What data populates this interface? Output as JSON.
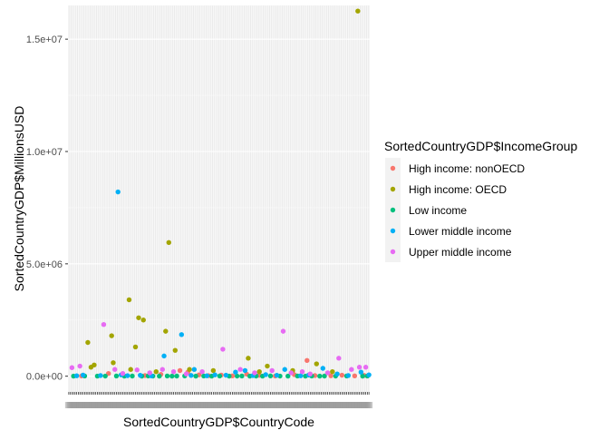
{
  "chart_data": {
    "type": "scatter",
    "xlabel": "SortedCountryGDP$CountryCode",
    "ylabel": "SortedCountryGDP$MillionsUSD",
    "ylim": [
      -700000,
      16500000
    ],
    "y_ticks": [
      0,
      5000000,
      10000000,
      15000000
    ],
    "y_tick_labels": [
      "0.0e+00",
      "5.0e+06",
      "1.0e+07",
      "1.5e+07"
    ],
    "x_category_count": 190,
    "x_tick_labels_legible": false,
    "grid": true,
    "background": "#ebebeb",
    "legend": {
      "title": "SortedCountryGDP$IncomeGroup",
      "placement": "right"
    },
    "series": [
      {
        "name": "High income: nonOECD",
        "color": "#F8766D",
        "points": [
          [
            8,
            12000
          ],
          [
            25,
            120000
          ],
          [
            48,
            30000
          ],
          [
            58,
            80000
          ],
          [
            70,
            250000
          ],
          [
            75,
            180000
          ],
          [
            82,
            60000
          ],
          [
            88,
            25000
          ],
          [
            96,
            50000
          ],
          [
            103,
            15000
          ],
          [
            112,
            90000
          ],
          [
            120,
            40000
          ],
          [
            130,
            10000
          ],
          [
            142,
            70000
          ],
          [
            150,
            700000
          ],
          [
            155,
            30000
          ],
          [
            165,
            20000
          ],
          [
            172,
            45000
          ],
          [
            180,
            15000
          ],
          [
            186,
            35000
          ]
        ]
      },
      {
        "name": "High income: OECD",
        "color": "#A3A500",
        "points": [
          [
            12,
            1500000
          ],
          [
            14,
            400000
          ],
          [
            16,
            500000
          ],
          [
            27,
            1800000
          ],
          [
            28,
            600000
          ],
          [
            38,
            3400000
          ],
          [
            39,
            300000
          ],
          [
            42,
            1300000
          ],
          [
            44,
            2600000
          ],
          [
            47,
            2500000
          ],
          [
            55,
            200000
          ],
          [
            61,
            2000000
          ],
          [
            63,
            5950000
          ],
          [
            67,
            1150000
          ],
          [
            76,
            300000
          ],
          [
            91,
            250000
          ],
          [
            113,
            800000
          ],
          [
            120,
            200000
          ],
          [
            125,
            450000
          ],
          [
            141,
            250000
          ],
          [
            156,
            550000
          ],
          [
            166,
            200000
          ],
          [
            182,
            16250000
          ]
        ]
      },
      {
        "name": "Low income",
        "color": "#00BF7D",
        "points": [
          [
            3,
            5000
          ],
          [
            10,
            8000
          ],
          [
            18,
            4000
          ],
          [
            23,
            6000
          ],
          [
            30,
            10000
          ],
          [
            35,
            3000
          ],
          [
            40,
            7000
          ],
          [
            46,
            5000
          ],
          [
            50,
            12000
          ],
          [
            53,
            6000
          ],
          [
            57,
            4000
          ],
          [
            62,
            9000
          ],
          [
            65,
            3000
          ],
          [
            68,
            7000
          ],
          [
            73,
            11000
          ],
          [
            80,
            5000
          ],
          [
            85,
            8000
          ],
          [
            90,
            4000
          ],
          [
            95,
            10000
          ],
          [
            101,
            3000
          ],
          [
            106,
            6000
          ],
          [
            109,
            9000
          ],
          [
            114,
            5000
          ],
          [
            118,
            7000
          ],
          [
            122,
            4000
          ],
          [
            127,
            12000
          ],
          [
            133,
            6000
          ],
          [
            138,
            3000
          ],
          [
            144,
            8000
          ],
          [
            149,
            5000
          ],
          [
            153,
            10000
          ],
          [
            158,
            4000
          ],
          [
            161,
            7000
          ],
          [
            168,
            6000
          ],
          [
            175,
            9000
          ],
          [
            185,
            5000
          ],
          [
            188,
            8000
          ]
        ]
      },
      {
        "name": "Lower middle income",
        "color": "#00B0F6",
        "points": [
          [
            5,
            20000
          ],
          [
            9,
            50000
          ],
          [
            20,
            30000
          ],
          [
            31,
            8200000
          ],
          [
            33,
            60000
          ],
          [
            37,
            25000
          ],
          [
            45,
            40000
          ],
          [
            52,
            15000
          ],
          [
            60,
            900000
          ],
          [
            71,
            1850000
          ],
          [
            77,
            35000
          ],
          [
            79,
            300000
          ],
          [
            87,
            20000
          ],
          [
            92,
            60000
          ],
          [
            99,
            45000
          ],
          [
            105,
            180000
          ],
          [
            111,
            250000
          ],
          [
            116,
            30000
          ],
          [
            124,
            70000
          ],
          [
            131,
            40000
          ],
          [
            136,
            300000
          ],
          [
            146,
            20000
          ],
          [
            151,
            50000
          ],
          [
            160,
            350000
          ],
          [
            169,
            100000
          ],
          [
            176,
            30000
          ],
          [
            184,
            180000
          ],
          [
            189,
            60000
          ]
        ]
      },
      {
        "name": "Upper middle income",
        "color": "#E76BF3",
        "points": [
          [
            2,
            380000
          ],
          [
            7,
            450000
          ],
          [
            22,
            2300000
          ],
          [
            29,
            300000
          ],
          [
            34,
            120000
          ],
          [
            43,
            280000
          ],
          [
            51,
            150000
          ],
          [
            59,
            300000
          ],
          [
            66,
            200000
          ],
          [
            74,
            100000
          ],
          [
            84,
            200000
          ],
          [
            97,
            1200000
          ],
          [
            108,
            300000
          ],
          [
            117,
            150000
          ],
          [
            128,
            250000
          ],
          [
            135,
            2000000
          ],
          [
            140,
            150000
          ],
          [
            147,
            200000
          ],
          [
            152,
            100000
          ],
          [
            163,
            150000
          ],
          [
            170,
            800000
          ],
          [
            178,
            300000
          ],
          [
            183,
            400000
          ],
          [
            187,
            400000
          ]
        ]
      }
    ]
  }
}
